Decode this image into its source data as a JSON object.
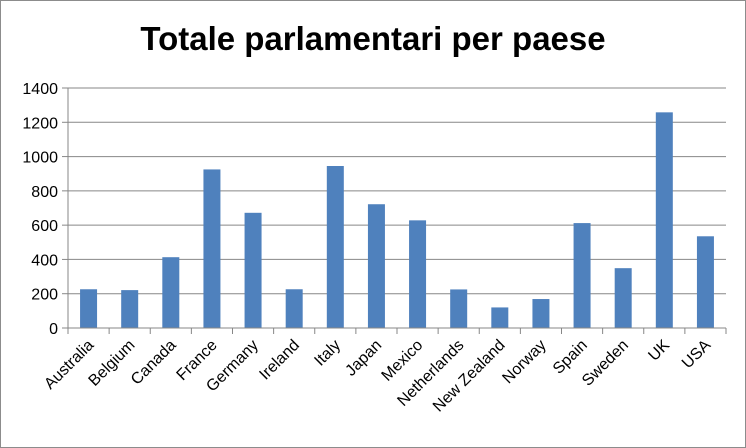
{
  "chart_data": {
    "type": "bar",
    "title": "Totale parlamentari per paese",
    "xlabel": "",
    "ylabel": "",
    "ylim": [
      0,
      1400
    ],
    "yticks": [
      "0",
      "200",
      "400",
      "600",
      "800",
      "1000",
      "1200",
      "1400"
    ],
    "grid": true,
    "legend": "none",
    "bar_color": "#4f81bd",
    "categories": [
      "Australia",
      "Belgium",
      "Canada",
      "France",
      "Germany",
      "Ireland",
      "Italy",
      "Japan",
      "Mexico",
      "Netherlands",
      "New Zealand",
      "Norway",
      "Spain",
      "Sweden",
      "UK",
      "USA"
    ],
    "values": [
      226,
      221,
      413,
      925,
      672,
      226,
      945,
      722,
      628,
      225,
      120,
      169,
      612,
      349,
      1258,
      535
    ]
  }
}
